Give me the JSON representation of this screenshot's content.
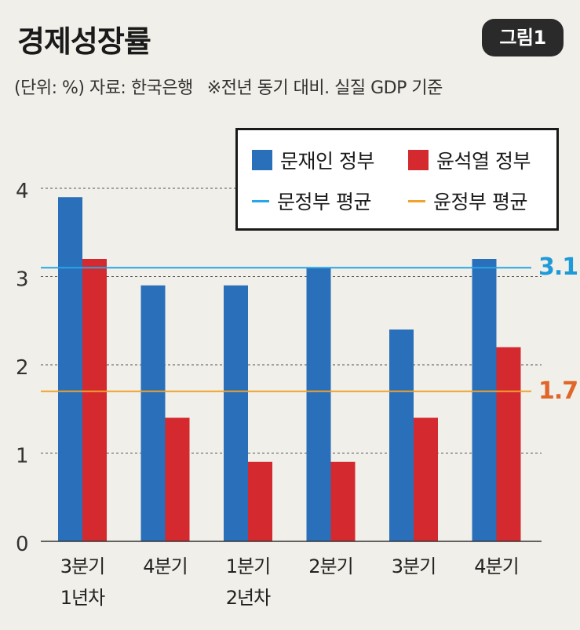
{
  "header": {
    "title": "경제성장률",
    "badge": "그림1",
    "unit_source": "(단위: %) 자료: 한국은행",
    "note": "※전년 동기 대비. 실질 GDP 기준"
  },
  "legend": {
    "moon_bar": "문재인 정부",
    "yoon_bar": "윤석열 정부",
    "moon_avg": "문정부 평균",
    "yoon_avg": "윤정부 평균"
  },
  "colors": {
    "moon": "#2a6fba",
    "yoon": "#d42a2f",
    "moon_avg": "#28a6e6",
    "yoon_avg": "#f0a22a",
    "moon_avg_label": "#1f9ad8",
    "yoon_avg_label": "#e0662a"
  },
  "chart_data": {
    "type": "bar",
    "categories": [
      [
        "3분기",
        "1년차"
      ],
      [
        "4분기",
        ""
      ],
      [
        "1분기",
        "2년차"
      ],
      [
        "2분기",
        ""
      ],
      [
        "3분기",
        ""
      ],
      [
        "4분기",
        ""
      ]
    ],
    "series": [
      {
        "name": "문재인 정부",
        "values": [
          3.9,
          2.9,
          2.9,
          3.1,
          2.4,
          3.2
        ]
      },
      {
        "name": "윤석열 정부",
        "values": [
          3.2,
          1.4,
          0.9,
          0.9,
          1.4,
          2.2
        ]
      }
    ],
    "averages": [
      {
        "name": "문정부 평균",
        "value": 3.1,
        "label": "3.1"
      },
      {
        "name": "윤정부 평균",
        "value": 1.7,
        "label": "1.7"
      }
    ],
    "yticks": [
      "0",
      "1",
      "2",
      "3",
      "4"
    ],
    "ylim": [
      0,
      4.3
    ],
    "grid": true,
    "legend_position": "top-right"
  }
}
